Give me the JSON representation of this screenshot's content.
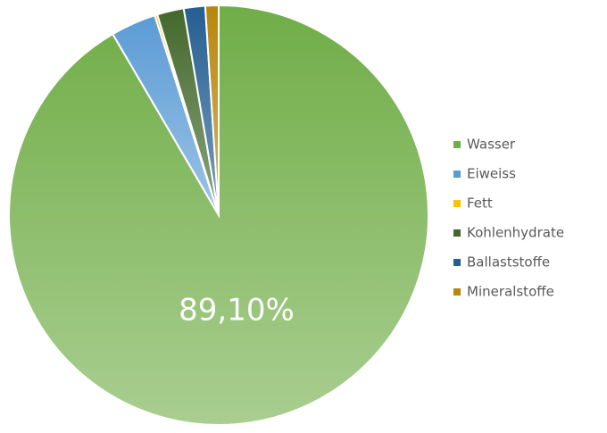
{
  "chart_data": {
    "type": "pie",
    "categories": [
      "Wasser",
      "Eiweiss",
      "Fett",
      "Kohlenhydrate",
      "Ballaststoffe",
      "Mineralstoffe"
    ],
    "values": [
      89.1,
      3.4,
      0.2,
      2.0,
      1.6,
      1.0
    ],
    "value_labels": [
      "89,10%",
      null,
      null,
      null,
      null,
      null
    ],
    "colors": [
      "#70ad47",
      "#5b9bd5",
      "#ffc000",
      "#43682b",
      "#255e91",
      "#b8860b"
    ],
    "legend": "right"
  }
}
